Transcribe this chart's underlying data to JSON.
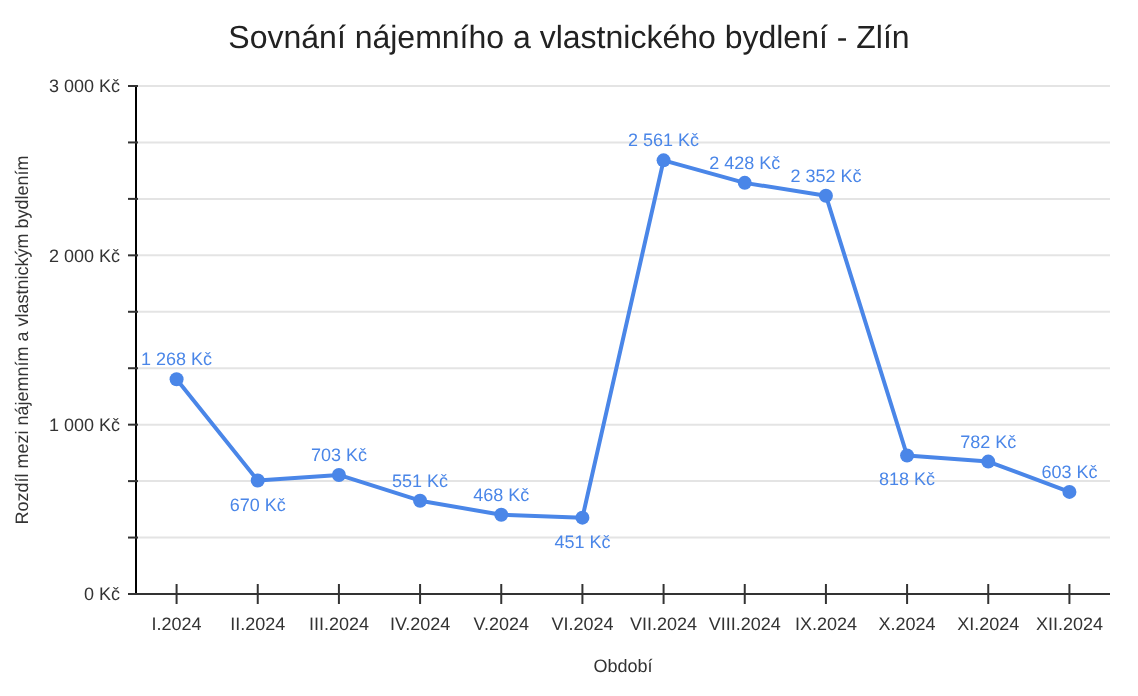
{
  "chart_data": {
    "type": "line",
    "title": "Sovnání nájemního a vlastnického bydlení - Zlín",
    "xlabel": "Období",
    "ylabel": "Rozdíl mezi nájemním a vlastnickým bydlením",
    "categories": [
      "I.2024",
      "II.2024",
      "III.2024",
      "IV.2024",
      "V.2024",
      "VI.2024",
      "VII.2024",
      "VIII.2024",
      "IX.2024",
      "X.2024",
      "XI.2024",
      "XII.2024"
    ],
    "series": [
      {
        "color": "#4a86e8",
        "values": [
          1268,
          670,
          703,
          551,
          468,
          451,
          2561,
          2428,
          2352,
          818,
          782,
          603
        ],
        "value_labels": [
          "1 268 Kč",
          "670 Kč",
          "703 Kč",
          "551 Kč",
          "468 Kč",
          "451 Kč",
          "2 561 Kč",
          "2 428 Kč",
          "2 352 Kč",
          "818 Kč",
          "782 Kč",
          "603 Kč"
        ]
      }
    ],
    "ylim": [
      0,
      3000
    ],
    "yticks": [
      {
        "value": 0,
        "label": "0 Kč"
      },
      {
        "value": 333.33,
        "label": null
      },
      {
        "value": 666.67,
        "label": null
      },
      {
        "value": 1000,
        "label": "1 000 Kč"
      },
      {
        "value": 1333.33,
        "label": null
      },
      {
        "value": 1666.67,
        "label": null
      },
      {
        "value": 2000,
        "label": "2 000 Kč"
      },
      {
        "value": 2333.33,
        "label": null
      },
      {
        "value": 2666.67,
        "label": null
      },
      {
        "value": 3000,
        "label": "3 000 Kč"
      }
    ],
    "grid": "y",
    "marker": "circle",
    "line_style": "solid"
  }
}
